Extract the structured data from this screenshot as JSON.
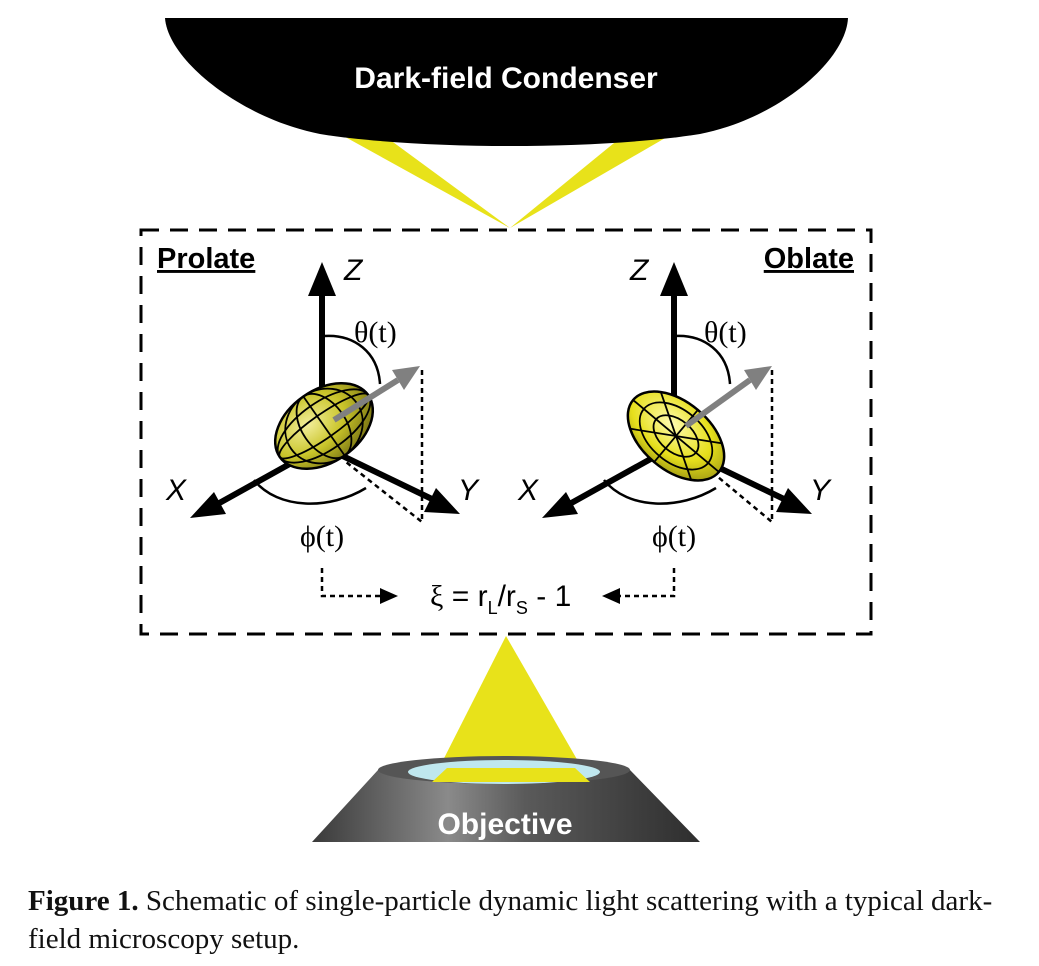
{
  "diagram": {
    "condenser_label": "Dark-field Condenser",
    "objective_label": "Objective",
    "prolate": {
      "title": "Prolate",
      "z_label": "Z",
      "x_label": "X",
      "y_label": "Y",
      "theta_label": "θ(t)",
      "phi_label": "ϕ(t)"
    },
    "oblate": {
      "title": "Oblate",
      "z_label": "Z",
      "x_label": "X",
      "y_label": "Y",
      "theta_label": "θ(t)",
      "phi_label": "ϕ(t)"
    },
    "equation": {
      "xi": "ξ",
      "eq": " = r",
      "sub_l": "L",
      "slash": "/r",
      "sub_s": "S",
      "tail": " - 1"
    },
    "colors": {
      "light": "#e8e21a",
      "prolate_fill": "#c9c42a",
      "oblate_fill": "#e6df1c",
      "arrow_gray": "#808080",
      "condenser": "#000000"
    }
  },
  "caption": {
    "label": "Figure 1.",
    "text": " Schematic of single-particle dynamic light scattering with a typical dark-field microscopy setup."
  }
}
